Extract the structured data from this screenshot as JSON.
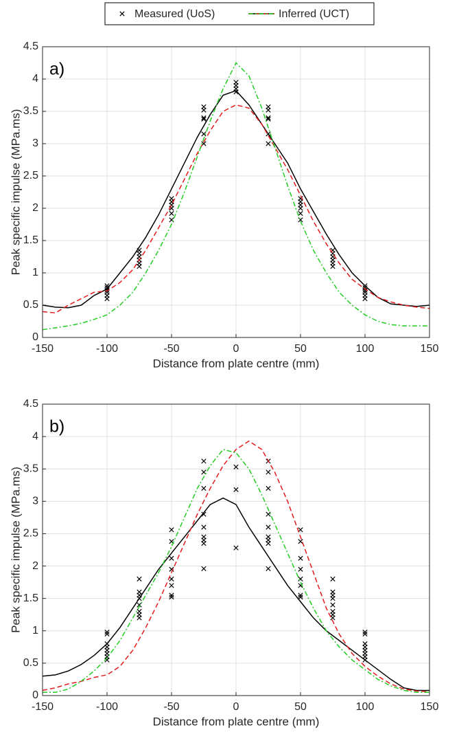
{
  "legend": [
    "Measured (UoS)",
    "Inferred (UCT)"
  ],
  "chart_data": [
    {
      "type": "line",
      "label": "a)",
      "xlabel": "Distance from plate centre (mm)",
      "ylabel": "Peak specific impulse (MPa.ms)",
      "xlim": [
        -150,
        150
      ],
      "xticks": [
        -150,
        -100,
        -50,
        0,
        50,
        100,
        150
      ],
      "ylim": [
        0,
        4.5
      ],
      "yticks": [
        0,
        0.5,
        1,
        1.5,
        2,
        2.5,
        3,
        3.5,
        4,
        4.5
      ],
      "grid": true,
      "x": [
        -150,
        -140,
        -130,
        -120,
        -110,
        -100,
        -90,
        -80,
        -70,
        -60,
        -50,
        -40,
        -30,
        -20,
        -10,
        0,
        10,
        20,
        30,
        40,
        50,
        60,
        70,
        80,
        90,
        100,
        110,
        120,
        130,
        140,
        150
      ],
      "series": [
        {
          "color": "#000000",
          "dash": "solid",
          "values": [
            0.5,
            0.47,
            0.46,
            0.5,
            0.65,
            0.75,
            1.0,
            1.25,
            1.55,
            1.9,
            2.3,
            2.7,
            3.1,
            3.45,
            3.75,
            3.82,
            3.6,
            3.3,
            3.0,
            2.7,
            2.3,
            1.95,
            1.6,
            1.28,
            1.0,
            0.8,
            0.62,
            0.52,
            0.5,
            0.48,
            0.5
          ]
        },
        {
          "color": "#e41a1c",
          "dash": "dashed",
          "values": [
            0.4,
            0.38,
            0.5,
            0.6,
            0.7,
            0.72,
            0.85,
            1.05,
            1.35,
            1.7,
            2.05,
            2.45,
            2.85,
            3.2,
            3.5,
            3.6,
            3.55,
            3.3,
            2.95,
            2.6,
            2.2,
            1.8,
            1.45,
            1.15,
            0.9,
            0.75,
            0.62,
            0.55,
            0.5,
            0.47,
            0.45
          ]
        },
        {
          "color": "#22cc22",
          "dash": "dashdot",
          "values": [
            0.12,
            0.15,
            0.18,
            0.22,
            0.28,
            0.35,
            0.5,
            0.7,
            1.0,
            1.35,
            1.75,
            2.25,
            2.8,
            3.35,
            3.85,
            4.25,
            4.05,
            3.55,
            2.95,
            2.35,
            1.8,
            1.35,
            1.0,
            0.7,
            0.5,
            0.35,
            0.25,
            0.2,
            0.18,
            0.18,
            0.18
          ]
        }
      ],
      "measured": {
        "marker": "x",
        "color": "#000000",
        "x": [
          -100,
          -100,
          -100,
          -100,
          -100,
          -100,
          -75,
          -75,
          -75,
          -75,
          -75,
          -75,
          -50,
          -50,
          -50,
          -50,
          -50,
          -50,
          -25,
          -25,
          -25,
          -25,
          -25,
          -25,
          0,
          0,
          0,
          0,
          25,
          25,
          25,
          25,
          25,
          25,
          50,
          50,
          50,
          50,
          50,
          50,
          75,
          75,
          75,
          75,
          75,
          75,
          100,
          100,
          100,
          100,
          100,
          100
        ],
        "values": [
          0.6,
          0.65,
          0.7,
          0.73,
          0.77,
          0.8,
          1.1,
          1.15,
          1.2,
          1.25,
          1.3,
          1.35,
          1.82,
          1.92,
          2,
          2.05,
          2.1,
          2.15,
          3,
          3.15,
          3.38,
          3.4,
          3.52,
          3.57,
          3.8,
          3.85,
          3.9,
          3.95,
          3,
          3.15,
          3.38,
          3.4,
          3.52,
          3.57,
          1.82,
          1.92,
          2,
          2.05,
          2.1,
          2.15,
          1.1,
          1.15,
          1.2,
          1.25,
          1.3,
          1.35,
          0.6,
          0.65,
          0.7,
          0.73,
          0.77,
          0.8
        ]
      }
    },
    {
      "type": "line",
      "label": "b)",
      "xlabel": "Distance from plate centre (mm)",
      "ylabel": "Peak specific impulse (MPa.ms)",
      "xlim": [
        -150,
        150
      ],
      "xticks": [
        -150,
        -100,
        -50,
        0,
        50,
        100,
        150
      ],
      "ylim": [
        0,
        4.5
      ],
      "yticks": [
        0,
        0.5,
        1,
        1.5,
        2,
        2.5,
        3,
        3.5,
        4,
        4.5
      ],
      "grid": true,
      "x": [
        -150,
        -140,
        -130,
        -120,
        -110,
        -100,
        -90,
        -80,
        -70,
        -60,
        -50,
        -40,
        -30,
        -20,
        -10,
        0,
        10,
        20,
        30,
        40,
        50,
        60,
        70,
        80,
        90,
        100,
        110,
        120,
        130,
        140,
        150
      ],
      "series": [
        {
          "color": "#000000",
          "dash": "solid",
          "values": [
            0.3,
            0.32,
            0.38,
            0.48,
            0.62,
            0.8,
            1.05,
            1.35,
            1.65,
            1.95,
            2.2,
            2.45,
            2.7,
            2.95,
            3.05,
            2.95,
            2.6,
            2.3,
            2.0,
            1.7,
            1.45,
            1.2,
            1.0,
            0.85,
            0.7,
            0.55,
            0.4,
            0.25,
            0.12,
            0.08,
            0.08
          ]
        },
        {
          "color": "#e41a1c",
          "dash": "dashed",
          "values": [
            0.08,
            0.12,
            0.18,
            0.22,
            0.28,
            0.32,
            0.45,
            0.7,
            1.05,
            1.45,
            1.9,
            2.35,
            2.8,
            3.2,
            3.55,
            3.8,
            3.93,
            3.8,
            3.45,
            3.0,
            2.45,
            1.9,
            1.35,
            0.95,
            0.65,
            0.45,
            0.3,
            0.18,
            0.1,
            0.07,
            0.06
          ]
        },
        {
          "color": "#22cc22",
          "dash": "dashdot",
          "values": [
            0.05,
            0.05,
            0.1,
            0.22,
            0.38,
            0.58,
            0.85,
            1.2,
            1.55,
            1.9,
            2.3,
            2.75,
            3.2,
            3.55,
            3.8,
            3.75,
            3.5,
            3.1,
            2.65,
            2.2,
            1.75,
            1.35,
            1.0,
            0.75,
            0.55,
            0.4,
            0.25,
            0.15,
            0.08,
            0.05,
            0.05
          ]
        }
      ],
      "measured": {
        "marker": "x",
        "color": "#000000",
        "x": [
          -100,
          -100,
          -100,
          -100,
          -100,
          -100,
          -100,
          -100,
          -75,
          -75,
          -75,
          -75,
          -75,
          -75,
          -75,
          -75,
          -50,
          -50,
          -50,
          -50,
          -50,
          -50,
          -50,
          -50,
          -25,
          -25,
          -25,
          -25,
          -25,
          -25,
          -25,
          -25,
          -25,
          0,
          0,
          0,
          25,
          25,
          25,
          25,
          25,
          25,
          25,
          25,
          25,
          50,
          50,
          50,
          50,
          50,
          50,
          50,
          50,
          75,
          75,
          75,
          75,
          75,
          75,
          75,
          75,
          100,
          100,
          100,
          100,
          100,
          100,
          100,
          100
        ],
        "values": [
          0.55,
          0.6,
          0.65,
          0.7,
          0.75,
          0.8,
          0.95,
          0.98,
          1.2,
          1.25,
          1.3,
          1.4,
          1.5,
          1.55,
          1.6,
          1.8,
          1.52,
          1.55,
          1.7,
          1.8,
          1.95,
          2.12,
          2.38,
          2.56,
          1.96,
          2.35,
          2.4,
          2.45,
          2.6,
          2.8,
          3.2,
          3.45,
          3.62,
          2.28,
          3.18,
          3.53,
          1.96,
          2.35,
          2.4,
          2.45,
          2.6,
          2.8,
          3.2,
          3.45,
          3.62,
          1.52,
          1.55,
          1.7,
          1.8,
          1.95,
          2.12,
          2.38,
          2.56,
          1.2,
          1.25,
          1.3,
          1.4,
          1.5,
          1.55,
          1.6,
          1.8,
          0.55,
          0.6,
          0.65,
          0.7,
          0.75,
          0.8,
          0.95,
          0.98
        ]
      }
    }
  ]
}
